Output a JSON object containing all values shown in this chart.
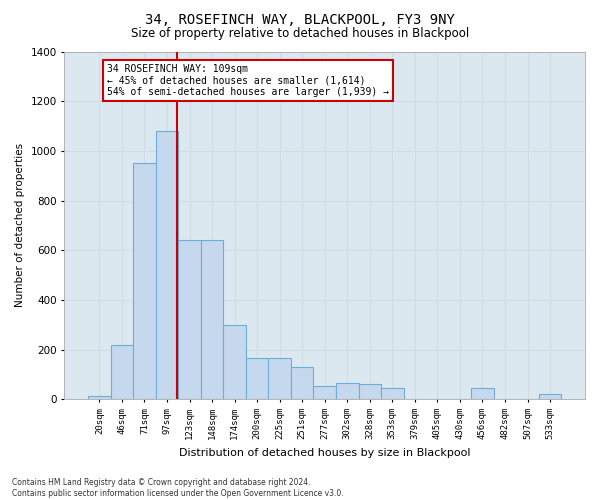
{
  "title": "34, ROSEFINCH WAY, BLACKPOOL, FY3 9NY",
  "subtitle": "Size of property relative to detached houses in Blackpool",
  "xlabel": "Distribution of detached houses by size in Blackpool",
  "ylabel": "Number of detached properties",
  "bin_labels": [
    "20sqm",
    "46sqm",
    "71sqm",
    "97sqm",
    "123sqm",
    "148sqm",
    "174sqm",
    "200sqm",
    "225sqm",
    "251sqm",
    "277sqm",
    "302sqm",
    "328sqm",
    "353sqm",
    "379sqm",
    "405sqm",
    "430sqm",
    "456sqm",
    "482sqm",
    "507sqm",
    "533sqm"
  ],
  "bar_heights": [
    15,
    220,
    950,
    1080,
    640,
    640,
    300,
    165,
    165,
    130,
    55,
    65,
    60,
    45,
    0,
    0,
    0,
    45,
    0,
    0,
    20
  ],
  "bar_color": "#c5d8ee",
  "bar_edge_color": "#6baed6",
  "red_line_x": 3.5,
  "ylim": [
    0,
    1400
  ],
  "yticks": [
    0,
    200,
    400,
    600,
    800,
    1000,
    1200,
    1400
  ],
  "annotation_line1": "34 ROSEFINCH WAY: 109sqm",
  "annotation_line2": "← 45% of detached houses are smaller (1,614)",
  "annotation_line3": "54% of semi-detached houses are larger (1,939) →",
  "footer_text": "Contains HM Land Registry data © Crown copyright and database right 2024.\nContains public sector information licensed under the Open Government Licence v3.0.",
  "grid_color": "#d0dce8",
  "background_color": "#dce8f0",
  "title_fontsize": 10,
  "subtitle_fontsize": 8.5
}
